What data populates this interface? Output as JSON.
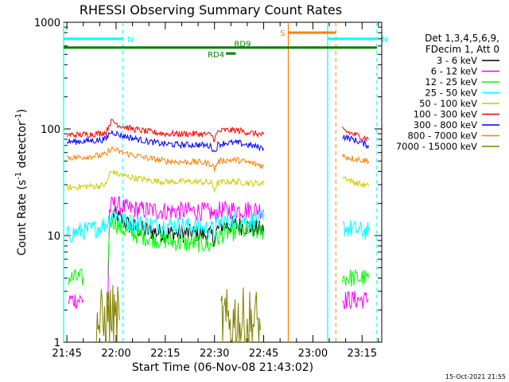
{
  "chart_data": {
    "type": "line",
    "title": "RHESSI Observing Summary Count Rates",
    "xlabel": "Start Time (06-Nov-08 21:43:02)",
    "ylabel_main": "Count Rate (s",
    "ylabel_sup1": "-1",
    "ylabel_mid": " detector",
    "ylabel_sup2": "-1",
    "ylabel_end": ")",
    "yscale": "log",
    "ylim": [
      1,
      1000
    ],
    "xlim_minutes": [
      -1,
      96
    ],
    "ytick_labels": [
      {
        "value": 1,
        "label": "1"
      },
      {
        "value": 10,
        "label": "10"
      },
      {
        "value": 100,
        "label": "100"
      },
      {
        "value": 1000,
        "label": "1000"
      }
    ],
    "xtick_labels": [
      {
        "m": 0,
        "label": "21:45"
      },
      {
        "m": 15,
        "label": "22:00"
      },
      {
        "m": 30,
        "label": "22:15"
      },
      {
        "m": 45,
        "label": "22:30"
      },
      {
        "m": 60,
        "label": "22:45"
      },
      {
        "m": 75,
        "label": "23:00"
      },
      {
        "m": 90,
        "label": "23:15"
      }
    ],
    "legend_header": [
      "Det 1,3,4,5,6,9,",
      "FDecim 1, Att 0"
    ],
    "legend_position": "top-right",
    "series": [
      {
        "name": "3 - 6 keV",
        "color": "#000000",
        "segments": [
          [
            [
              14,
              16
            ],
            [
              16,
              14.5
            ],
            [
              18,
              13
            ],
            [
              20,
              12
            ],
            [
              22,
              11.5
            ],
            [
              25,
              11
            ],
            [
              30,
              10.5
            ],
            [
              35,
              10.5
            ],
            [
              40,
              10.5
            ],
            [
              44,
              10
            ],
            [
              45,
              9.5
            ],
            [
              46,
              11.5
            ],
            [
              48,
              12.5
            ],
            [
              52,
              12.5
            ],
            [
              56,
              12
            ],
            [
              58,
              11.5
            ],
            [
              60,
              11
            ]
          ]
        ]
      },
      {
        "name": "6 - 12 keV",
        "color": "#ff00ff",
        "segments": [
          [
            [
              0.5,
              2.5
            ],
            [
              2,
              2.5
            ],
            [
              4,
              2.5
            ],
            [
              5,
              2.5
            ]
          ],
          [
            [
              12.5,
              2.5
            ],
            [
              13,
              17
            ],
            [
              14,
              20
            ],
            [
              16,
              19
            ],
            [
              18,
              18
            ],
            [
              22,
              17.5
            ],
            [
              30,
              17
            ],
            [
              40,
              17
            ],
            [
              44,
              16.5
            ],
            [
              45,
              15
            ],
            [
              46,
              17
            ],
            [
              50,
              17.5
            ],
            [
              56,
              17.5
            ],
            [
              60,
              17.5
            ]
          ],
          [
            [
              84,
              2.5
            ],
            [
              87,
              2.5
            ],
            [
              90,
              2.5
            ],
            [
              92,
              2.5
            ]
          ]
        ]
      },
      {
        "name": "12 - 25 keV",
        "color": "#00ff00",
        "segments": [
          [
            [
              0.5,
              4
            ],
            [
              2,
              4
            ],
            [
              4,
              4
            ],
            [
              5,
              4
            ]
          ],
          [
            [
              12.5,
              4
            ],
            [
              13,
              13.5
            ],
            [
              14,
              14
            ],
            [
              16,
              12
            ],
            [
              18,
              11
            ],
            [
              20,
              10.5
            ],
            [
              25,
              9.5
            ],
            [
              30,
              9
            ],
            [
              35,
              8.5
            ],
            [
              40,
              8.5
            ],
            [
              44,
              8
            ],
            [
              45,
              9
            ],
            [
              48,
              10.5
            ],
            [
              52,
              11
            ],
            [
              56,
              11
            ],
            [
              60,
              11
            ]
          ],
          [
            [
              84,
              4
            ],
            [
              87,
              4
            ],
            [
              90,
              4
            ],
            [
              92,
              4
            ]
          ]
        ]
      },
      {
        "name": "25 - 50 keV",
        "color": "#00ffff",
        "segments": [
          [
            [
              0,
              10
            ],
            [
              2,
              10.5
            ],
            [
              4,
              11
            ],
            [
              6,
              11
            ],
            [
              8,
              11.5
            ],
            [
              10,
              12
            ],
            [
              12,
              13
            ],
            [
              13,
              14.5
            ],
            [
              14,
              16.5
            ],
            [
              16,
              14.5
            ],
            [
              18,
              13.5
            ],
            [
              22,
              13
            ],
            [
              28,
              12.5
            ],
            [
              34,
              12.5
            ],
            [
              40,
              12
            ],
            [
              44,
              11.5
            ],
            [
              45,
              11
            ],
            [
              46,
              13
            ],
            [
              50,
              14
            ],
            [
              55,
              14
            ],
            [
              60,
              14
            ]
          ],
          [
            [
              84,
              12
            ],
            [
              87,
              11.5
            ],
            [
              90,
              11
            ],
            [
              92,
              11
            ]
          ]
        ]
      },
      {
        "name": "50 - 100 keV",
        "color": "#cccc00",
        "segments": [
          [
            [
              0,
              28
            ],
            [
              3,
              28.5
            ],
            [
              6,
              29
            ],
            [
              9,
              29
            ],
            [
              12,
              30
            ],
            [
              13,
              38
            ],
            [
              14,
              40
            ],
            [
              16,
              37
            ],
            [
              20,
              35
            ],
            [
              25,
              33
            ],
            [
              30,
              32
            ],
            [
              35,
              32
            ],
            [
              40,
              32
            ],
            [
              44,
              31
            ],
            [
              45,
              27
            ],
            [
              46,
              31
            ],
            [
              48,
              32
            ],
            [
              52,
              32
            ],
            [
              56,
              31
            ],
            [
              60,
              31
            ]
          ],
          [
            [
              84,
              36
            ],
            [
              87,
              32
            ],
            [
              90,
              30
            ],
            [
              92,
              29
            ]
          ]
        ]
      },
      {
        "name": "100 - 300 keV",
        "color": "#ff0000",
        "segments": [
          [
            [
              0,
              88
            ],
            [
              3,
              88
            ],
            [
              6,
              89
            ],
            [
              9,
              90
            ],
            [
              12,
              93
            ],
            [
              13,
              113
            ],
            [
              14,
              118
            ],
            [
              16,
              108
            ],
            [
              20,
              100
            ],
            [
              25,
              94
            ],
            [
              30,
              90
            ],
            [
              35,
              90
            ],
            [
              40,
              90
            ],
            [
              44,
              88
            ],
            [
              45,
              80
            ],
            [
              46,
              94
            ],
            [
              48,
              97
            ],
            [
              52,
              97
            ],
            [
              56,
              92
            ],
            [
              60,
              88
            ]
          ],
          [
            [
              84,
              98
            ],
            [
              87,
              90
            ],
            [
              90,
              84
            ],
            [
              92,
              80
            ]
          ]
        ]
      },
      {
        "name": "300 - 800 keV",
        "color": "#0000ff",
        "segments": [
          [
            [
              0,
              76
            ],
            [
              3,
              76
            ],
            [
              6,
              77
            ],
            [
              9,
              78
            ],
            [
              12,
              80
            ],
            [
              13,
              92
            ],
            [
              14,
              94
            ],
            [
              16,
              88
            ],
            [
              20,
              82
            ],
            [
              25,
              76
            ],
            [
              30,
              72
            ],
            [
              35,
              71
            ],
            [
              40,
              71
            ],
            [
              44,
              69
            ],
            [
              45,
              60
            ],
            [
              46,
              71
            ],
            [
              48,
              74
            ],
            [
              52,
              74
            ],
            [
              56,
              70
            ],
            [
              60,
              66
            ]
          ],
          [
            [
              84,
              85
            ],
            [
              87,
              80
            ],
            [
              90,
              74
            ],
            [
              92,
              70
            ]
          ]
        ]
      },
      {
        "name": "800 - 7000 keV",
        "color": "#ff8000",
        "segments": [
          [
            [
              0,
              54
            ],
            [
              3,
              54
            ],
            [
              6,
              55
            ],
            [
              9,
              56
            ],
            [
              12,
              57
            ],
            [
              13,
              64
            ],
            [
              14,
              65
            ],
            [
              16,
              61
            ],
            [
              20,
              57
            ],
            [
              25,
              53
            ],
            [
              30,
              50
            ],
            [
              35,
              49
            ],
            [
              40,
              49
            ],
            [
              44,
              47
            ],
            [
              45,
              42
            ],
            [
              46,
              49
            ],
            [
              48,
              51
            ],
            [
              52,
              51
            ],
            [
              56,
              48
            ],
            [
              60,
              45
            ]
          ],
          [
            [
              84,
              56
            ],
            [
              87,
              53
            ],
            [
              90,
              51
            ],
            [
              92,
              50
            ]
          ]
        ]
      },
      {
        "name": "7000 - 15000 keV",
        "color": "#808000",
        "segments": [
          [
            [
              9,
              1.6
            ],
            [
              11,
              1.4
            ],
            [
              13,
              1.8
            ],
            [
              15,
              1.5
            ],
            [
              16,
              1.6
            ]
          ],
          [
            [
              47,
              1.6
            ],
            [
              49,
              1.4
            ],
            [
              51,
              1.6
            ],
            [
              53,
              1.5
            ],
            [
              55,
              1.4
            ],
            [
              57,
              1.6
            ],
            [
              59,
              1.3
            ]
          ]
        ]
      }
    ],
    "annotations": {
      "flags": [
        {
          "label": "N",
          "color": "#00ffff",
          "start": -1,
          "end": 17,
          "y": 700
        },
        {
          "label": "N",
          "color": "#00ffff",
          "start": 79.5,
          "end": 94.5,
          "y": 700
        },
        {
          "label": "S",
          "color": "#ff8000",
          "start": 67.5,
          "end": 82,
          "y": 800
        },
        {
          "label": "RD9",
          "color": "#008000",
          "start": -1,
          "end": 94.5,
          "y": 580
        },
        {
          "label": "RD4",
          "color": "#008000",
          "start": 48.5,
          "end": 51.5,
          "y": 510
        }
      ],
      "vlines_solid": [
        {
          "m": -1,
          "color": "#00ffff"
        },
        {
          "m": 67.5,
          "color": "#ff8000"
        },
        {
          "m": 79.5,
          "color": "#00ffff"
        }
      ],
      "vlines_dashed": [
        {
          "m": 17,
          "color": "#00ffff"
        },
        {
          "m": 82,
          "color": "#ff8000"
        },
        {
          "m": 94.5,
          "color": "#00ffff"
        }
      ]
    }
  },
  "footer_timestamp": "15-Oct-2021 21:55"
}
